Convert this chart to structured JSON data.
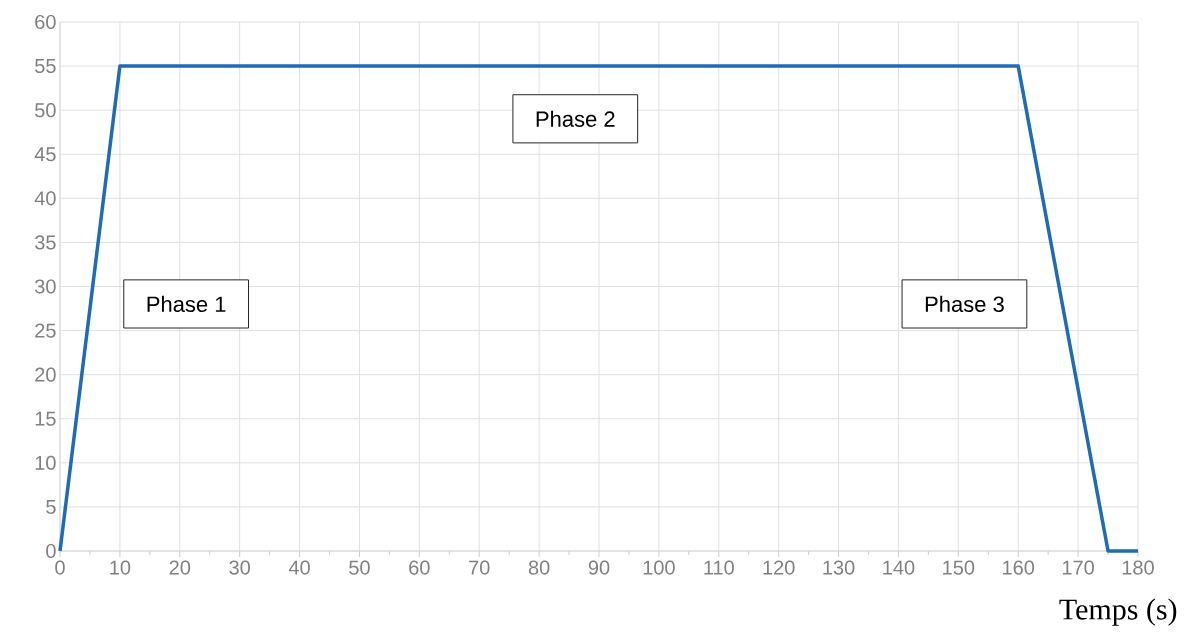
{
  "chart_data": {
    "type": "line",
    "xlabel": "Temps (s)",
    "x": [
      0,
      10,
      160,
      175,
      180
    ],
    "series": [
      {
        "color": "#1f6bb5",
        "values": [
          0,
          55,
          55,
          0,
          0
        ]
      }
    ],
    "xlim": [
      0,
      180
    ],
    "ylim": [
      0,
      60
    ],
    "xticks": [
      0,
      10,
      20,
      30,
      40,
      50,
      60,
      70,
      80,
      90,
      100,
      110,
      120,
      130,
      140,
      150,
      160,
      170,
      180
    ],
    "yticks": [
      0,
      5,
      10,
      15,
      20,
      25,
      30,
      35,
      40,
      45,
      50,
      55,
      60
    ],
    "grid": true,
    "marker": "none",
    "line_style": "solid",
    "annotations": [
      "Phase 1",
      "Phase 2",
      "Phase 3"
    ]
  }
}
